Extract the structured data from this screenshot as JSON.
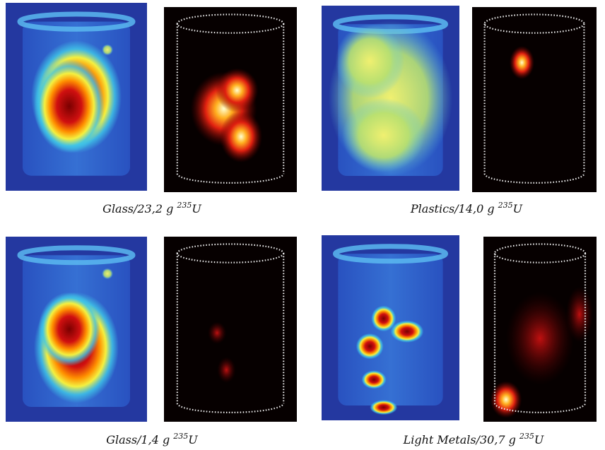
{
  "panels": [
    {
      "caption": {
        "material": "Glass/23,2 g",
        "isotope": "235",
        "element": "U"
      }
    },
    {
      "caption": {
        "material": "Plastics/14,0 g",
        "isotope": "235",
        "element": "U"
      }
    },
    {
      "caption": {
        "material": "Glass/1,4 g",
        "isotope": "235",
        "element": "U"
      }
    },
    {
      "caption": {
        "material": "Light Metals/30,7 g",
        "isotope": "235",
        "element": "U"
      }
    }
  ]
}
